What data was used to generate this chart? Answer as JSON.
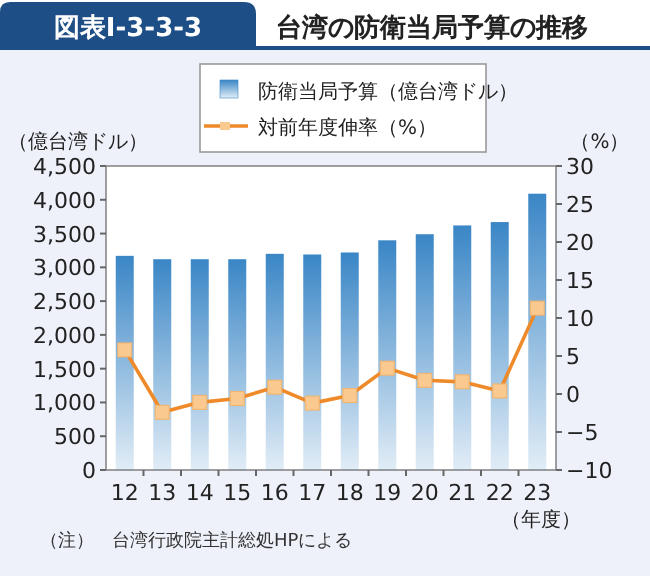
{
  "chart_data": {
    "type": "bar",
    "title": "台湾の防衛当局予算の推移",
    "annotations": [
      "図表Ⅰ-3-3-3",
      "（注）　台湾行政院主計総処HPによる"
    ],
    "categories": [
      "12",
      "13",
      "14",
      "15",
      "16",
      "17",
      "18",
      "19",
      "20",
      "21",
      "22",
      "23"
    ],
    "series": [
      {
        "name": "防衛当局予算（億台湾ドル）",
        "color": "#3a86c6",
        "values": [
          3170,
          3120,
          3120,
          3120,
          3200,
          3190,
          3220,
          3400,
          3490,
          3620,
          3670,
          4090
        ]
      },
      {
        "name": "対前年度伸率（%）",
        "type": "line",
        "axis": "y2",
        "marker": "square",
        "color": "#ee8a2a",
        "values": [
          5.8,
          -2.4,
          -1.1,
          -0.6,
          0.9,
          -1.2,
          -0.2,
          3.4,
          1.8,
          1.6,
          0.4,
          11.3
        ]
      }
    ],
    "xlabel": "（年度）",
    "ylabel": "（億台湾ドル）",
    "y2label": "（%）",
    "ylim": [
      0,
      4500
    ],
    "yticks": [
      0,
      500,
      {
        "value": 1000,
        "label": "1,000"
      },
      {
        "value": 1500,
        "label": "1,500"
      },
      {
        "value": 2000,
        "label": "2,000"
      },
      {
        "value": 2500,
        "label": "2,500"
      },
      {
        "value": 3000,
        "label": "3,000"
      },
      {
        "value": 3500,
        "label": "3,500"
      },
      {
        "value": 4000,
        "label": "4,000"
      },
      {
        "value": 4500,
        "label": "4,500"
      }
    ],
    "y2lim": [
      -10,
      30
    ],
    "y2ticks": [
      {
        "value": -10,
        "label": "−10"
      },
      {
        "value": -5,
        "label": "−5"
      },
      0,
      5,
      10,
      15,
      20,
      25,
      30
    ],
    "legend": "top"
  }
}
